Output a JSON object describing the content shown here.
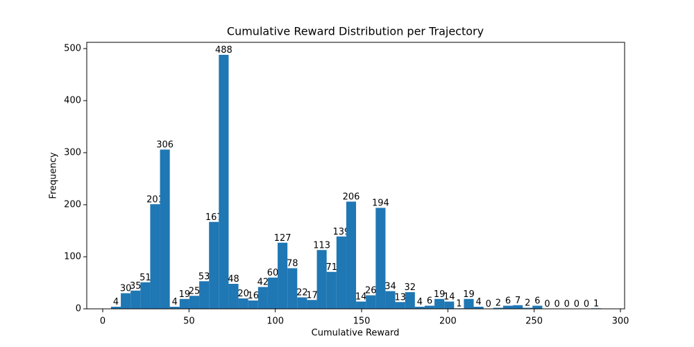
{
  "chart_data": {
    "type": "histogram",
    "title": "Cumulative Reward Distribution per Trajectory",
    "x_label": "Cumulative Reward",
    "y_label": "Frequency",
    "color": "#1f77b4",
    "bins": [
      4.8,
      10.48,
      16.16,
      21.84,
      27.52,
      33.2,
      38.88,
      44.56,
      50.24,
      55.92,
      61.6,
      67.28,
      72.96,
      78.64,
      84.32,
      90.0,
      95.68,
      101.36,
      107.04,
      112.72,
      118.4,
      124.08,
      129.76,
      135.44,
      141.12,
      146.8,
      152.48,
      158.16,
      163.84,
      169.52,
      175.2,
      180.88,
      186.56,
      192.24,
      197.92,
      203.6,
      209.28,
      214.96,
      220.64,
      226.32,
      232.0,
      237.68,
      243.36,
      249.04,
      254.72,
      260.4,
      266.08,
      271.76,
      277.44,
      283.12,
      288.8
    ],
    "counts": [
      4,
      30,
      35,
      51,
      201,
      306,
      4,
      19,
      25,
      53,
      167,
      488,
      48,
      20,
      16,
      42,
      60,
      127,
      78,
      22,
      17,
      113,
      71,
      139,
      206,
      14,
      26,
      194,
      34,
      13,
      32,
      4,
      6,
      19,
      14,
      1,
      19,
      4,
      0,
      2,
      6,
      7,
      2,
      6,
      0,
      0,
      0,
      0,
      0,
      1
    ],
    "xlim": [
      -9.25,
      302.4
    ],
    "ylim": [
      0,
      512
    ],
    "xticks": [
      0,
      50,
      100,
      150,
      200,
      250,
      300
    ],
    "yticks": [
      0,
      100,
      200,
      300,
      400,
      500
    ]
  }
}
